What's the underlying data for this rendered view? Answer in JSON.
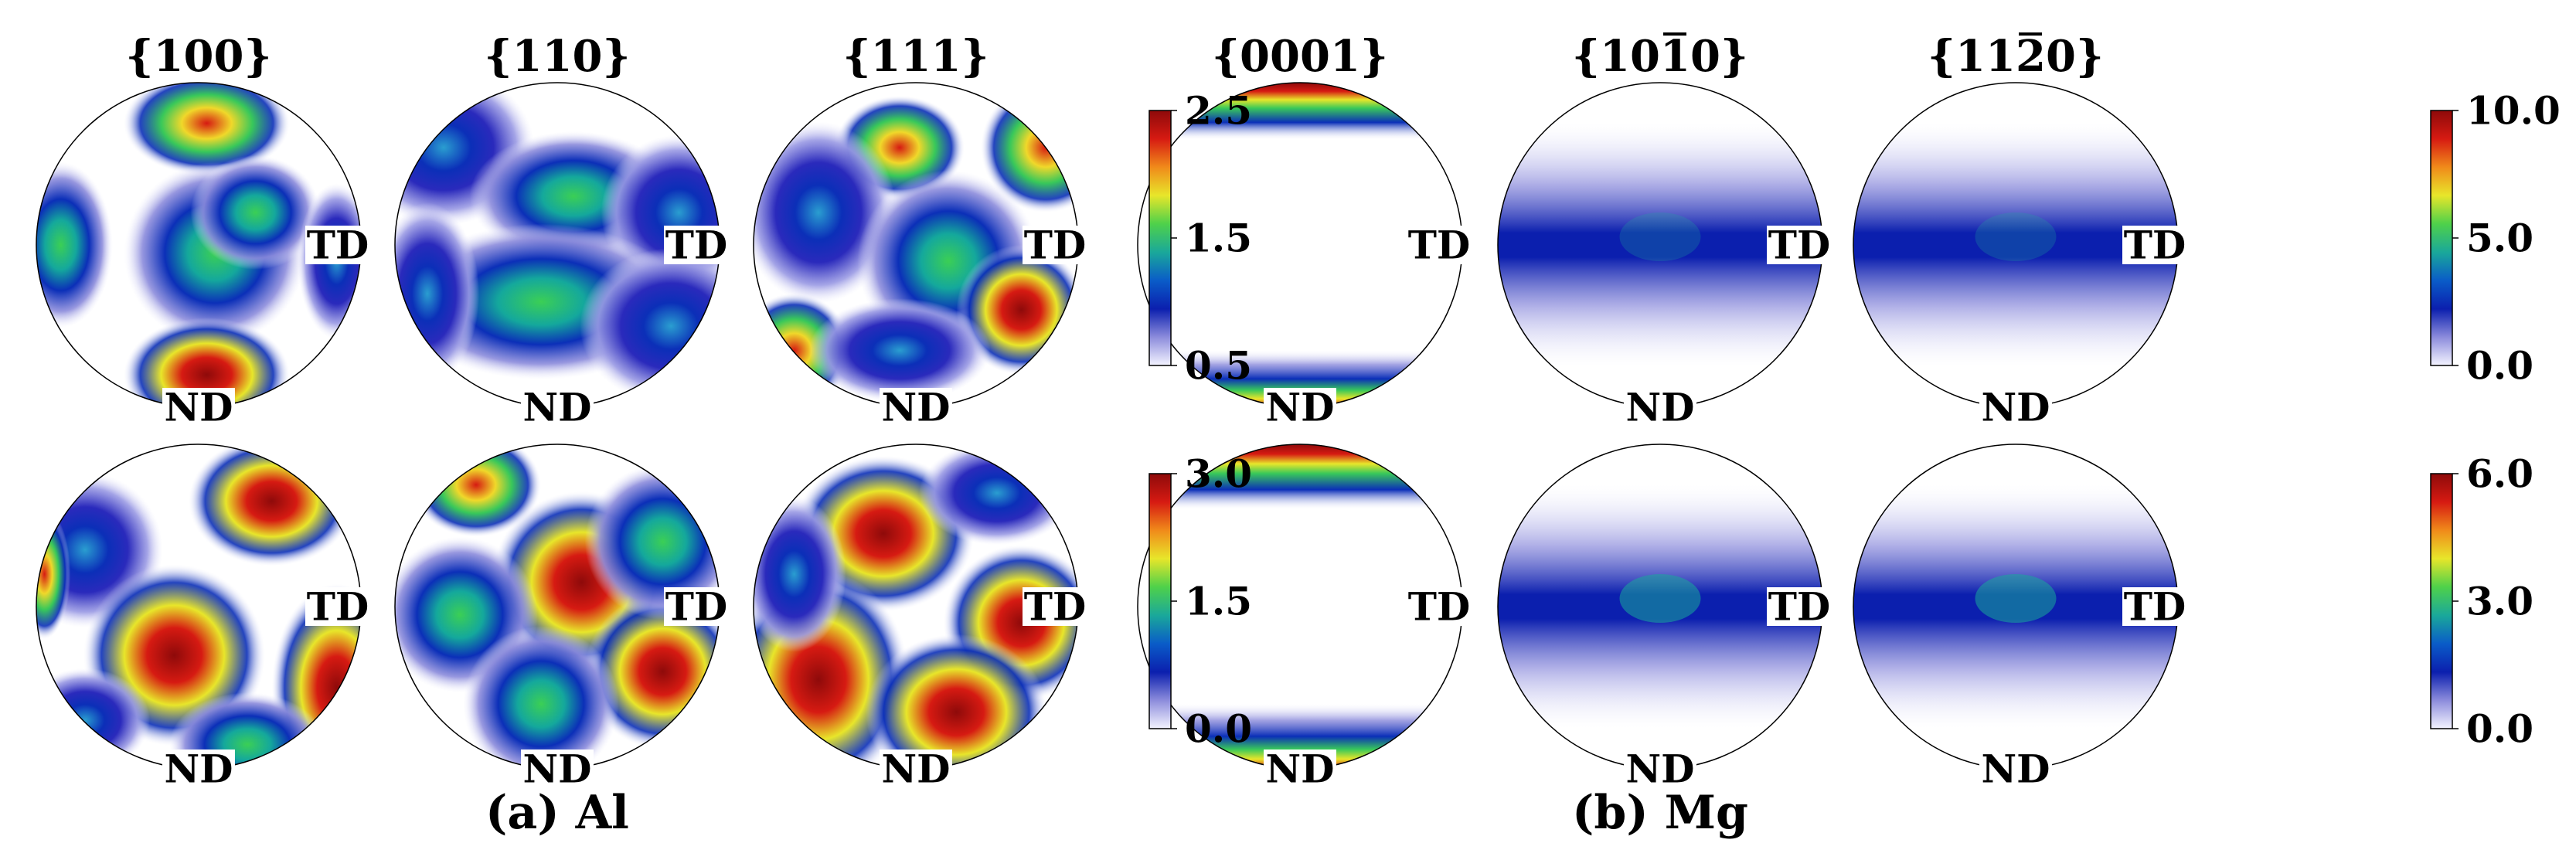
{
  "panels": [
    {
      "caption": "(a) Al",
      "pole_figure_titles": [
        "{100}",
        "{110}",
        "{111}"
      ],
      "rows": [
        {
          "colorbar": {
            "ticks": [
              "2.5",
              "1.5",
              "0.5"
            ],
            "min": 0.5,
            "max": 2.5
          }
        },
        {
          "colorbar": {
            "ticks": [
              "3.0",
              "1.5",
              "0.0"
            ],
            "min": 0.0,
            "max": 3.0
          }
        }
      ]
    },
    {
      "caption": "(b) Mg",
      "pole_figure_titles": [
        "{0001}",
        "{1010}",
        "{1120}"
      ],
      "title_overlines": [
        "",
        "1",
        "2"
      ],
      "rows": [
        {
          "colorbar": {
            "ticks": [
              "10.0",
              "5.0",
              "0.0"
            ],
            "min": 0.0,
            "max": 10.0
          }
        },
        {
          "colorbar": {
            "ticks": [
              "6.0",
              "3.0",
              "0.0"
            ],
            "min": 0.0,
            "max": 6.0
          }
        }
      ]
    }
  ],
  "direction_labels": {
    "right": "TD",
    "bottom": "ND"
  },
  "colormap": [
    "#f4f4ff",
    "#8c8cdc",
    "#0b1fae",
    "#0a5cc8",
    "#1aa89a",
    "#4fd14a",
    "#e8e62a",
    "#f08a1a",
    "#d61a12",
    "#8e0a0a"
  ]
}
